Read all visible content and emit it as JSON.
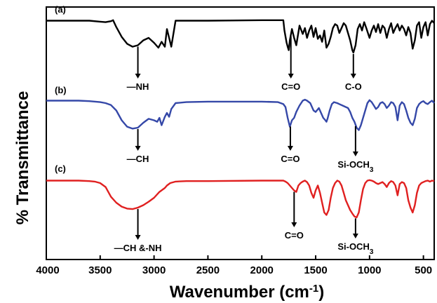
{
  "chart_data": {
    "type": "line",
    "title": "",
    "xlabel": "Wavenumber (cm⁻¹)",
    "xlabel_main": "Wavenumber (cm",
    "xlabel_sup": "-1",
    "xlabel_close": ")",
    "ylabel": "% Transmittance",
    "xlim": [
      4000,
      400
    ],
    "x_reversed": true,
    "y_ticks_shown": false,
    "grid": false,
    "x_ticks": [
      4000,
      3500,
      3000,
      2500,
      2000,
      1500,
      1000,
      500
    ],
    "series": [
      {
        "name": "(a)",
        "color": "#000000",
        "x": [
          4000,
          3600,
          3500,
          3450,
          3400,
          3380,
          3350,
          3300,
          3250,
          3200,
          3150,
          3100,
          3050,
          3000,
          2960,
          2930,
          2900,
          2880,
          2860,
          2840,
          2800,
          2500,
          2000,
          1800,
          1790,
          1770,
          1760,
          1750,
          1740,
          1720,
          1700,
          1680,
          1650,
          1620,
          1600,
          1580,
          1560,
          1540,
          1520,
          1500,
          1480,
          1460,
          1440,
          1420,
          1400,
          1380,
          1360,
          1340,
          1320,
          1300,
          1280,
          1260,
          1240,
          1220,
          1200,
          1180,
          1160,
          1150,
          1130,
          1110,
          1090,
          1070,
          1050,
          1030,
          1000,
          980,
          960,
          940,
          920,
          900,
          880,
          860,
          840,
          820,
          800,
          780,
          760,
          740,
          720,
          700,
          680,
          660,
          640,
          620,
          600,
          580,
          560,
          540,
          520,
          500,
          480,
          460,
          440,
          420,
          400
        ],
        "y": [
          95,
          95,
          93,
          92,
          94,
          96,
          82,
          62,
          48,
          42,
          45,
          55,
          60,
          50,
          40,
          52,
          42,
          78,
          60,
          42,
          95,
          95,
          96,
          96,
          75,
          50,
          42,
          35,
          55,
          78,
          60,
          45,
          85,
          68,
          80,
          60,
          75,
          85,
          62,
          80,
          58,
          65,
          52,
          75,
          40,
          48,
          62,
          80,
          88,
          85,
          70,
          80,
          90,
          85,
          70,
          55,
          35,
          30,
          45,
          78,
          88,
          75,
          92,
          80,
          60,
          75,
          85,
          72,
          88,
          70,
          85,
          80,
          60,
          78,
          90,
          70,
          80,
          88,
          75,
          85,
          78,
          65,
          82,
          70,
          38,
          55,
          85,
          92,
          60,
          82,
          92,
          65,
          88,
          95,
          90
        ]
      },
      {
        "name": "(b)",
        "color": "#3548a8",
        "x": [
          4000,
          3700,
          3600,
          3500,
          3450,
          3400,
          3350,
          3300,
          3250,
          3200,
          3150,
          3100,
          3050,
          3000,
          2970,
          2950,
          2930,
          2900,
          2880,
          2860,
          2840,
          2800,
          2700,
          2500,
          2000,
          1850,
          1800,
          1780,
          1760,
          1740,
          1720,
          1700,
          1680,
          1650,
          1620,
          1600,
          1580,
          1550,
          1520,
          1500,
          1470,
          1450,
          1430,
          1410,
          1400,
          1390,
          1370,
          1350,
          1330,
          1300,
          1280,
          1250,
          1220,
          1200,
          1180,
          1160,
          1140,
          1120,
          1100,
          1080,
          1060,
          1040,
          1020,
          1000,
          980,
          960,
          940,
          920,
          900,
          880,
          860,
          840,
          820,
          800,
          780,
          760,
          740,
          720,
          700,
          680,
          660,
          640,
          620,
          600,
          580,
          560,
          540,
          520,
          500,
          480,
          460,
          440,
          420,
          400
        ],
        "y": [
          95,
          95,
          94,
          92,
          90,
          86,
          75,
          55,
          42,
          38,
          40,
          50,
          58,
          55,
          52,
          60,
          45,
          62,
          70,
          62,
          78,
          90,
          92,
          93,
          93,
          92,
          88,
          82,
          60,
          42,
          55,
          60,
          72,
          85,
          95,
          97,
          95,
          90,
          75,
          72,
          80,
          70,
          60,
          55,
          52,
          58,
          75,
          88,
          92,
          90,
          88,
          85,
          82,
          80,
          72,
          60,
          52,
          40,
          35,
          45,
          60,
          75,
          90,
          96,
          92,
          85,
          78,
          82,
          90,
          92,
          88,
          80,
          85,
          92,
          90,
          82,
          55,
          85,
          92,
          88,
          75,
          60,
          50,
          45,
          58,
          80,
          88,
          92,
          94,
          90,
          88,
          92,
          95,
          90
        ]
      },
      {
        "name": "(c)",
        "color": "#e02020",
        "x": [
          4000,
          3700,
          3600,
          3550,
          3500,
          3450,
          3400,
          3350,
          3300,
          3250,
          3200,
          3150,
          3100,
          3050,
          3000,
          2950,
          2900,
          2880,
          2850,
          2800,
          2700,
          2600,
          2500,
          2000,
          1800,
          1780,
          1760,
          1740,
          1720,
          1700,
          1680,
          1660,
          1640,
          1620,
          1600,
          1580,
          1560,
          1540,
          1520,
          1500,
          1480,
          1460,
          1440,
          1420,
          1400,
          1380,
          1360,
          1340,
          1320,
          1300,
          1280,
          1260,
          1240,
          1220,
          1200,
          1180,
          1160,
          1140,
          1120,
          1100,
          1080,
          1060,
          1040,
          1020,
          1000,
          980,
          960,
          940,
          920,
          900,
          880,
          860,
          840,
          820,
          800,
          780,
          760,
          740,
          720,
          700,
          680,
          660,
          640,
          620,
          600,
          580,
          560,
          540,
          520,
          500,
          480,
          460,
          440,
          420,
          400
        ],
        "y": [
          95,
          95,
          94,
          93,
          90,
          82,
          62,
          50,
          42,
          38,
          37,
          40,
          45,
          52,
          60,
          72,
          80,
          85,
          90,
          93,
          94,
          94,
          94,
          95,
          95,
          93,
          90,
          85,
          80,
          75,
          72,
          85,
          90,
          93,
          95,
          92,
          85,
          70,
          60,
          75,
          85,
          70,
          50,
          30,
          25,
          35,
          60,
          80,
          90,
          95,
          93,
          85,
          70,
          55,
          45,
          35,
          28,
          22,
          20,
          30,
          55,
          78,
          90,
          95,
          96,
          95,
          93,
          90,
          88,
          90,
          92,
          88,
          82,
          90,
          94,
          92,
          85,
          65,
          88,
          92,
          90,
          80,
          55,
          40,
          30,
          45,
          70,
          85,
          90,
          92,
          94,
          95,
          93,
          95,
          94
        ]
      }
    ],
    "annotations": [
      {
        "series": 0,
        "x": 3150,
        "text": "—NH",
        "sub": ""
      },
      {
        "series": 0,
        "x": 1730,
        "text": "C=O",
        "sub": ""
      },
      {
        "series": 0,
        "x": 1150,
        "text": "C-O",
        "sub": ""
      },
      {
        "series": 1,
        "x": 3150,
        "text": "—CH",
        "sub": ""
      },
      {
        "series": 1,
        "x": 1735,
        "text": "C=O",
        "sub": ""
      },
      {
        "series": 1,
        "x": 1130,
        "text": "Si-OCH",
        "sub": "3"
      },
      {
        "series": 2,
        "x": 3150,
        "text": "—CH &-NH",
        "sub": ""
      },
      {
        "series": 2,
        "x": 1700,
        "text": "C=O",
        "sub": ""
      },
      {
        "series": 2,
        "x": 1130,
        "text": "Si-OCH",
        "sub": "3"
      }
    ]
  }
}
